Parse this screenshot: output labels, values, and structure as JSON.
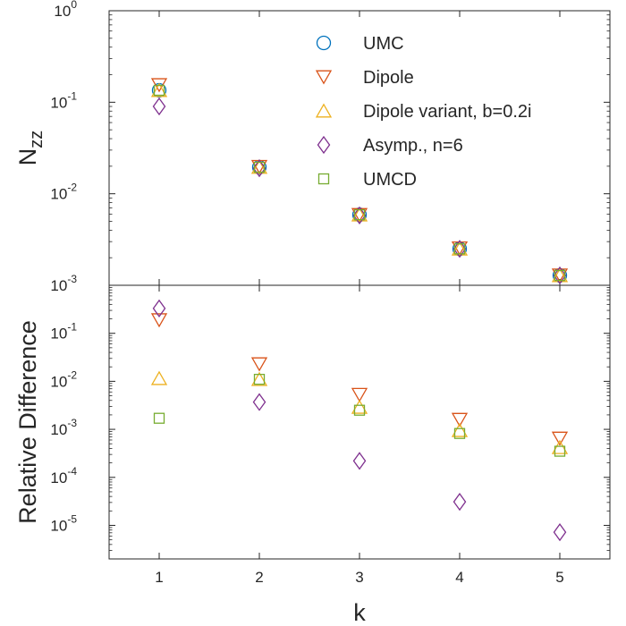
{
  "chart_data": [
    {
      "type": "scatter",
      "panel": "top",
      "ylabel": "N",
      "ylabel_sub": "zz",
      "xlabel": "",
      "yscale": "log",
      "ylim": [
        0.001,
        1
      ],
      "xlim": [
        0.5,
        5.5
      ],
      "grid": false,
      "legend_position": "top-right",
      "yticks": [
        {
          "base": "10",
          "exp": "0",
          "value": 1
        },
        {
          "base": "10",
          "exp": "-1",
          "value": 0.1
        },
        {
          "base": "10",
          "exp": "-2",
          "value": 0.01
        },
        {
          "base": "10",
          "exp": "-3",
          "value": 0.001
        }
      ],
      "series": [
        {
          "name": "UMC",
          "marker": "circle",
          "color": "#0072BD",
          "x": [
            1,
            2,
            3,
            4,
            5
          ],
          "y": [
            0.135,
            0.0195,
            0.0059,
            0.0025,
            0.00128
          ]
        },
        {
          "name": "Dipole",
          "marker": "triangle-down",
          "color": "#D95319",
          "x": [
            1,
            2,
            3,
            4,
            5
          ],
          "y": [
            0.155,
            0.0198,
            0.0059,
            0.00255,
            0.00129
          ]
        },
        {
          "name": "Dipole variant, b=0.2i",
          "marker": "triangle-up",
          "color": "#EDB120",
          "x": [
            1,
            2,
            3,
            4,
            5
          ],
          "y": [
            0.135,
            0.0195,
            0.0059,
            0.0025,
            0.00128
          ]
        },
        {
          "name": "Asymp., n=6",
          "marker": "diamond",
          "color": "#7E2F8E",
          "x": [
            1,
            2,
            3,
            4,
            5
          ],
          "y": [
            0.09,
            0.019,
            0.0058,
            0.0025,
            0.00128
          ]
        },
        {
          "name": "UMCD",
          "marker": "square",
          "color": "#77AC30",
          "x": [
            1,
            2,
            3,
            4,
            5
          ],
          "y": [
            0.135,
            0.0195,
            0.0059,
            0.0025,
            0.00128
          ]
        }
      ]
    },
    {
      "type": "scatter",
      "panel": "bottom",
      "ylabel": "Relative Difference",
      "xlabel": "k",
      "yscale": "log",
      "ylim": [
        2e-06,
        1
      ],
      "xlim": [
        0.5,
        5.5
      ],
      "grid": false,
      "xticks": [
        "1",
        "2",
        "3",
        "4",
        "5"
      ],
      "yticks": [
        {
          "base": "10",
          "exp": "-1",
          "value": 0.1
        },
        {
          "base": "10",
          "exp": "-2",
          "value": 0.01
        },
        {
          "base": "10",
          "exp": "-3",
          "value": 0.001
        },
        {
          "base": "10",
          "exp": "-4",
          "value": 0.0001
        },
        {
          "base": "10",
          "exp": "-5",
          "value": 1e-05
        }
      ],
      "series": [
        {
          "name": "Dipole",
          "marker": "triangle-down",
          "color": "#D95319",
          "x": [
            1,
            2,
            3,
            4,
            5
          ],
          "y": [
            0.19,
            0.023,
            0.0053,
            0.0016,
            0.00065
          ]
        },
        {
          "name": "Dipole variant, b=0.2i",
          "marker": "triangle-up",
          "color": "#EDB120",
          "x": [
            1,
            2,
            3,
            4,
            5
          ],
          "y": [
            0.0115,
            0.011,
            0.0029,
            0.00095,
            0.00042
          ]
        },
        {
          "name": "Asymp., n=6",
          "marker": "diamond",
          "color": "#7E2F8E",
          "x": [
            1,
            2,
            3,
            4,
            5
          ],
          "y": [
            0.33,
            0.0037,
            0.00022,
            3.1e-05,
            7.2e-06
          ]
        },
        {
          "name": "UMCD",
          "marker": "square",
          "color": "#77AC30",
          "x": [
            1,
            2,
            3,
            4,
            5
          ],
          "y": [
            0.0017,
            0.011,
            0.0025,
            0.00082,
            0.00035
          ]
        }
      ]
    }
  ]
}
